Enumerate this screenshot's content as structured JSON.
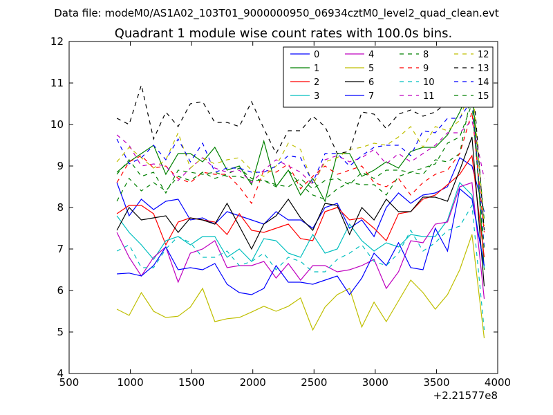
{
  "figure": {
    "suptitle": "Data file: modeM0/AS1A02_103T01_9000000950_06934cztM0_level2_quad_clean.evt",
    "offset_label": "+2.21577e8"
  },
  "chart_data": {
    "type": "line",
    "title": "Quadrant 1 module wise count rates with 100.0s bins.",
    "xlabel": "",
    "ylabel": "",
    "xlim": [
      500,
      4000
    ],
    "ylim": [
      4,
      12
    ],
    "xticks": [
      500,
      1000,
      1500,
      2000,
      2500,
      3000,
      3500,
      4000
    ],
    "yticks": [
      4,
      5,
      6,
      7,
      8,
      9,
      10,
      11,
      12
    ],
    "x_offset": 221577000,
    "grid": false,
    "legend_position": "top-right",
    "legend_columns": 4,
    "x": [
      890,
      990,
      1090,
      1190,
      1290,
      1390,
      1490,
      1590,
      1690,
      1790,
      1890,
      1990,
      2090,
      2190,
      2290,
      2390,
      2490,
      2590,
      2690,
      2790,
      2890,
      2990,
      3090,
      3190,
      3290,
      3390,
      3490,
      3590,
      3690,
      3790,
      3890
    ],
    "series": [
      {
        "name": "0",
        "color": "#0000ff",
        "dash": "solid",
        "values": [
          8.6,
          7.8,
          8.2,
          7.95,
          8.15,
          8.2,
          7.7,
          7.75,
          7.6,
          7.9,
          7.8,
          7.7,
          7.6,
          7.9,
          7.7,
          7.7,
          7.5,
          8.0,
          8.1,
          7.5,
          7.7,
          7.3,
          8.0,
          8.35,
          8.1,
          8.3,
          8.35,
          8.5,
          9.2,
          9.0,
          7.9
        ]
      },
      {
        "name": "1",
        "color": "#008000",
        "dash": "solid",
        "values": [
          8.85,
          9.1,
          9.3,
          9.5,
          8.8,
          9.3,
          9.3,
          9.1,
          9.45,
          8.9,
          9.0,
          8.55,
          9.6,
          8.5,
          8.9,
          8.3,
          8.7,
          8.15,
          9.3,
          9.3,
          8.75,
          8.9,
          9.1,
          8.95,
          9.35,
          9.45,
          9.45,
          9.75,
          10.3,
          11.0,
          6.5
        ]
      },
      {
        "name": "2",
        "color": "#ff0000",
        "dash": "solid",
        "values": [
          7.85,
          8.05,
          8.05,
          7.85,
          7.1,
          7.65,
          7.75,
          7.7,
          7.65,
          7.35,
          7.85,
          7.45,
          7.4,
          7.5,
          7.6,
          7.25,
          7.2,
          7.9,
          8.0,
          7.7,
          7.75,
          7.5,
          7.2,
          7.85,
          7.9,
          8.2,
          8.3,
          8.55,
          8.8,
          9.25,
          6.8
        ]
      },
      {
        "name": "3",
        "color": "#00bfbf",
        "dash": "solid",
        "values": [
          7.8,
          7.4,
          7.1,
          6.75,
          7.2,
          7.3,
          7.1,
          7.3,
          7.3,
          6.8,
          7.0,
          6.7,
          7.25,
          7.2,
          6.9,
          6.8,
          7.35,
          6.9,
          7.0,
          7.6,
          7.2,
          6.95,
          7.15,
          7.05,
          7.35,
          7.3,
          7.3,
          7.7,
          8.6,
          8.3,
          6.55
        ]
      },
      {
        "name": "4",
        "color": "#bf00bf",
        "dash": "solid",
        "values": [
          7.4,
          6.8,
          6.35,
          6.8,
          7.05,
          6.2,
          6.9,
          7.0,
          7.2,
          6.55,
          6.6,
          6.6,
          6.7,
          6.3,
          6.65,
          6.25,
          6.6,
          6.6,
          6.45,
          6.5,
          6.6,
          6.75,
          6.05,
          6.45,
          7.2,
          7.15,
          7.6,
          7.65,
          8.5,
          8.6,
          5.8
        ]
      },
      {
        "name": "5",
        "color": "#bfbf00",
        "dash": "solid",
        "values": [
          5.55,
          5.4,
          5.95,
          5.5,
          5.35,
          5.38,
          5.6,
          6.05,
          5.25,
          5.32,
          5.35,
          5.48,
          5.62,
          5.5,
          5.62,
          5.82,
          5.05,
          5.6,
          5.9,
          6.05,
          5.12,
          5.72,
          5.25,
          5.75,
          6.25,
          5.95,
          5.55,
          5.9,
          6.5,
          7.35,
          4.85
        ]
      },
      {
        "name": "6",
        "color": "#000000",
        "dash": "solid",
        "values": [
          7.45,
          8.0,
          7.7,
          7.75,
          7.8,
          7.4,
          7.75,
          7.7,
          7.6,
          8.1,
          7.55,
          7.0,
          7.6,
          7.8,
          8.2,
          7.75,
          7.45,
          8.1,
          8.05,
          7.35,
          8.0,
          7.7,
          8.2,
          7.9,
          7.9,
          8.25,
          8.25,
          8.15,
          8.9,
          9.7,
          6.1
        ]
      },
      {
        "name": "7",
        "color": "#0000ff",
        "dash": "solid",
        "values": [
          6.4,
          6.42,
          6.35,
          6.6,
          7.05,
          6.5,
          6.55,
          6.5,
          6.65,
          6.15,
          5.95,
          5.9,
          6.05,
          6.6,
          6.2,
          6.2,
          6.15,
          6.25,
          6.35,
          5.9,
          6.3,
          6.9,
          6.6,
          7.15,
          6.55,
          6.5,
          7.5,
          6.95,
          8.45,
          8.2,
          6.6
        ]
      },
      {
        "name": "8",
        "color": "#008000",
        "dash": "dashed",
        "values": [
          8.15,
          8.7,
          8.4,
          8.6,
          8.4,
          8.75,
          8.65,
          8.85,
          8.7,
          8.8,
          8.95,
          8.7,
          8.65,
          8.5,
          8.9,
          8.55,
          8.3,
          8.2,
          8.45,
          8.6,
          8.55,
          8.55,
          8.3,
          8.75,
          8.85,
          8.8,
          9.15,
          9.1,
          9.3,
          10.8,
          7.7
        ]
      },
      {
        "name": "9",
        "color": "#ff0000",
        "dash": "dashed",
        "values": [
          8.6,
          9.1,
          9.25,
          8.95,
          9.0,
          8.7,
          8.6,
          8.85,
          8.8,
          8.8,
          8.5,
          8.1,
          8.9,
          8.85,
          9.05,
          8.45,
          8.75,
          9.0,
          8.8,
          8.9,
          9.0,
          8.6,
          8.5,
          8.7,
          8.3,
          8.6,
          8.8,
          8.9,
          9.3,
          10.3,
          7.4
        ]
      },
      {
        "name": "10",
        "color": "#00bfbf",
        "dash": "dashed",
        "values": [
          6.95,
          7.1,
          6.55,
          6.55,
          7.0,
          7.3,
          7.15,
          6.8,
          6.8,
          6.95,
          6.6,
          6.7,
          6.9,
          6.5,
          6.8,
          6.7,
          6.45,
          6.45,
          6.75,
          6.9,
          7.1,
          6.7,
          6.6,
          6.9,
          7.45,
          6.95,
          7.15,
          7.45,
          7.55,
          8.05,
          5.05
        ]
      },
      {
        "name": "11",
        "color": "#bf00bf",
        "dash": "dashed",
        "values": [
          9.75,
          9.5,
          9.0,
          9.05,
          9.0,
          8.65,
          8.95,
          9.2,
          8.95,
          8.85,
          8.9,
          8.6,
          8.9,
          9.15,
          9.0,
          8.85,
          8.55,
          9.15,
          9.25,
          9.1,
          9.2,
          9.4,
          9.05,
          9.3,
          9.1,
          9.3,
          9.5,
          9.8,
          9.8,
          10.1,
          8.7
        ]
      },
      {
        "name": "12",
        "color": "#bfbf00",
        "dash": "dashed",
        "values": [
          9.1,
          9.45,
          9.2,
          8.95,
          9.15,
          9.8,
          8.95,
          9.2,
          9.05,
          9.15,
          9.2,
          8.9,
          8.75,
          9.0,
          9.55,
          9.4,
          8.55,
          9.1,
          9.2,
          9.4,
          9.45,
          9.55,
          9.5,
          9.7,
          9.95,
          9.45,
          9.95,
          9.85,
          10.1,
          11.05,
          7.55
        ]
      },
      {
        "name": "13",
        "color": "#000000",
        "dash": "dashed",
        "values": [
          10.15,
          10.0,
          10.95,
          9.65,
          10.3,
          9.95,
          10.5,
          10.55,
          10.05,
          10.05,
          9.95,
          10.55,
          9.9,
          9.3,
          9.85,
          9.85,
          10.2,
          9.95,
          9.3,
          9.35,
          10.3,
          10.25,
          9.9,
          10.25,
          10.35,
          10.2,
          10.3,
          10.55,
          11.2,
          11.35,
          7.45
        ]
      },
      {
        "name": "14",
        "color": "#0000ff",
        "dash": "dashed",
        "values": [
          9.65,
          9.05,
          9.2,
          9.5,
          9.15,
          9.65,
          9.1,
          9.55,
          8.85,
          8.95,
          8.95,
          8.85,
          8.85,
          9.0,
          9.25,
          9.2,
          8.6,
          9.3,
          9.3,
          9.0,
          9.25,
          9.45,
          9.5,
          9.5,
          9.25,
          9.85,
          9.8,
          10.15,
          10.15,
          10.6,
          7.05
        ]
      },
      {
        "name": "15",
        "color": "#008000",
        "dash": "dashed",
        "values": [
          8.8,
          9.15,
          8.75,
          8.85,
          8.35,
          8.9,
          8.85,
          8.8,
          8.85,
          8.75,
          8.75,
          8.65,
          8.65,
          8.55,
          8.5,
          8.7,
          8.45,
          8.65,
          8.7,
          8.55,
          8.85,
          8.7,
          8.9,
          8.9,
          8.85,
          8.95,
          9.05,
          9.55,
          9.7,
          10.5,
          6.95
        ]
      }
    ]
  }
}
